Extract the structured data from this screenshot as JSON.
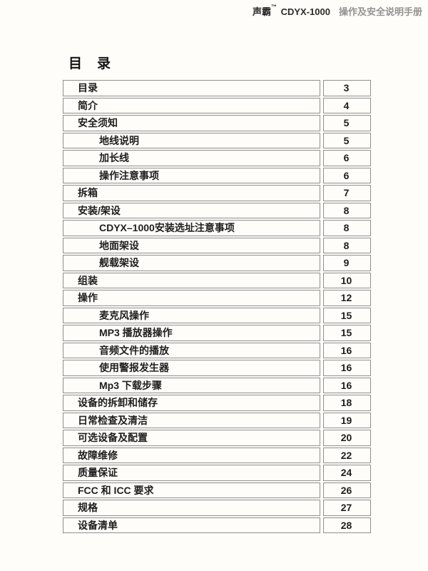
{
  "header": {
    "brand": "声霸",
    "trademark": "™",
    "model": "CDYX-1000",
    "subtitle": "操作及安全说明手册"
  },
  "page": {
    "title": "目　录"
  },
  "toc": {
    "entries": [
      {
        "label": "目录",
        "page": "3",
        "level": 1
      },
      {
        "label": "简介",
        "page": "4",
        "level": 1
      },
      {
        "label": "安全须知",
        "page": "5",
        "level": 1
      },
      {
        "label": "地线说明",
        "page": "5",
        "level": 2
      },
      {
        "label": "加长线",
        "page": "6",
        "level": 2
      },
      {
        "label": "操作注意事项",
        "page": "6",
        "level": 2
      },
      {
        "label": "拆箱",
        "page": "7",
        "level": 1
      },
      {
        "label": "安装/架设",
        "page": "8",
        "level": 1
      },
      {
        "label": "CDYX–1000安装选址注意事项",
        "page": "8",
        "level": 2
      },
      {
        "label": "地面架设",
        "page": "8",
        "level": 2
      },
      {
        "label": "舰载架设",
        "page": "9",
        "level": 2
      },
      {
        "label": "组装",
        "page": "10",
        "level": 1
      },
      {
        "label": "操作",
        "page": "12",
        "level": 1
      },
      {
        "label": "麦克风操作",
        "page": "15",
        "level": 2
      },
      {
        "label": "MP3 播放器操作",
        "page": "15",
        "level": 2
      },
      {
        "label": "音频文件的播放",
        "page": "16",
        "level": 2
      },
      {
        "label": "使用警报发生器",
        "page": "16",
        "level": 2
      },
      {
        "label": "Mp3 下载步骤",
        "page": "16",
        "level": 2
      },
      {
        "label": "设备的拆卸和储存",
        "page": "18",
        "level": 1
      },
      {
        "label": "日常检查及清洁",
        "page": "19",
        "level": 1
      },
      {
        "label": "可选设备及配置",
        "page": "20",
        "level": 1
      },
      {
        "label": "故障维修",
        "page": "22",
        "level": 1
      },
      {
        "label": "质量保证",
        "page": "24",
        "level": 1
      },
      {
        "label": "FCC 和 ICC 要求",
        "page": "26",
        "level": 1
      },
      {
        "label": "规格",
        "page": "27",
        "level": 1
      },
      {
        "label": "设备清单",
        "page": "28",
        "level": 1
      }
    ]
  },
  "colors": {
    "background": "#fffdf9",
    "border": "#8f8f8f",
    "text": "#1e1e1e",
    "header_text": "#2b2b2b",
    "subtitle_gray": "#939393"
  }
}
